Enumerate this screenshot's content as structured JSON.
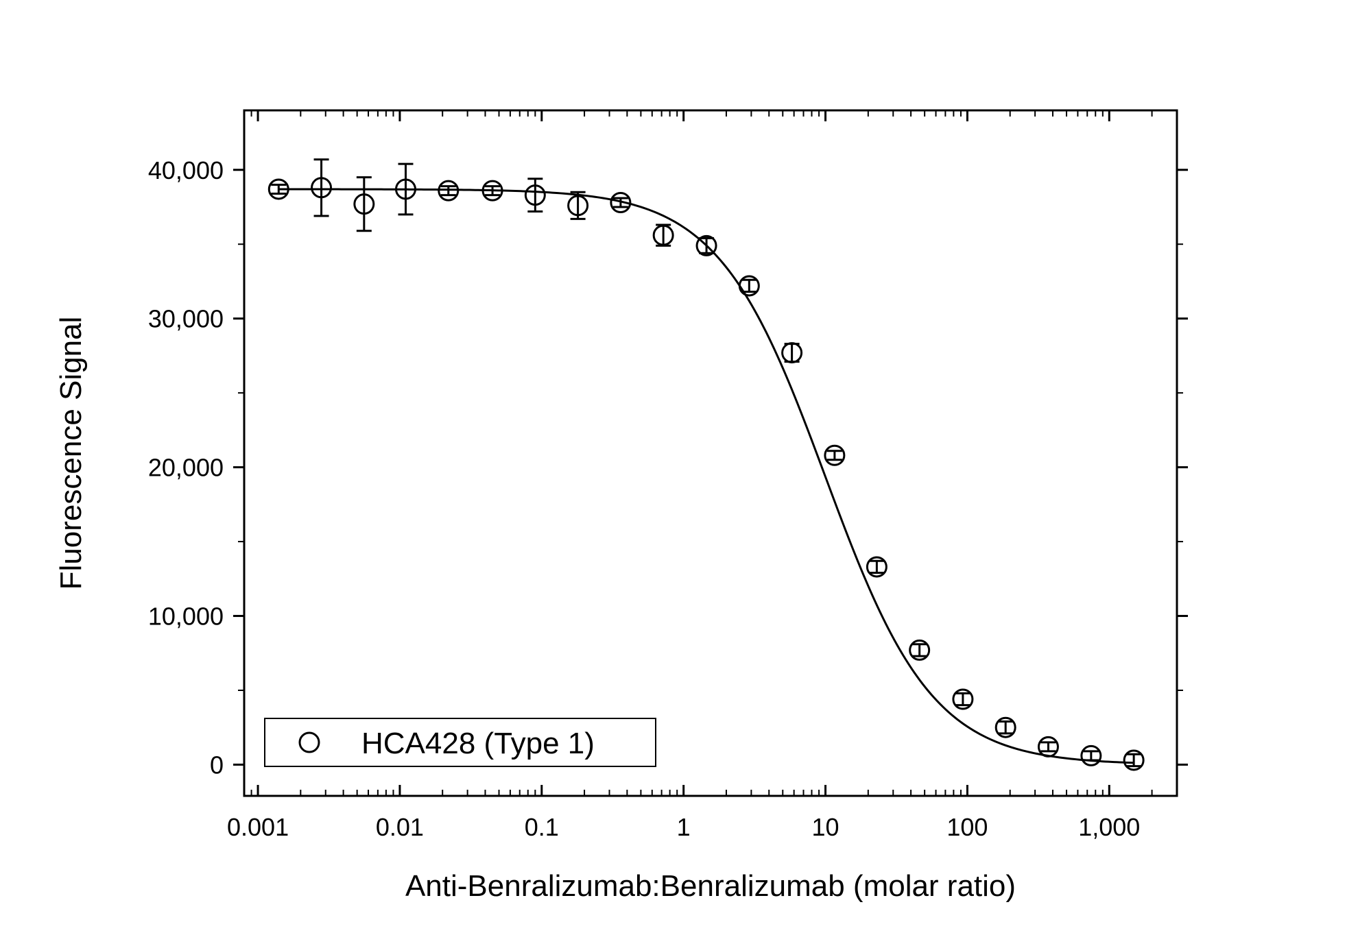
{
  "chart_data": {
    "type": "scatter",
    "title": "",
    "xlabel": "Anti-Benralizumab:Benralizumab (molar ratio)",
    "ylabel": "Fluorescence Signal",
    "x_scale": "log",
    "xlim": [
      0.0008,
      3000
    ],
    "ylim": [
      -2100,
      44000
    ],
    "x_ticks": [
      0.001,
      0.01,
      0.1,
      1,
      10,
      100,
      1000
    ],
    "x_tick_labels": [
      "0.001",
      "0.01",
      "0.1",
      "1",
      "10",
      "100",
      "1,000"
    ],
    "y_ticks": [
      0,
      10000,
      20000,
      30000,
      40000
    ],
    "y_tick_labels": [
      "0",
      "10,000",
      "20,000",
      "30,000",
      "40,000"
    ],
    "grid": false,
    "legend_position": "bottom-left",
    "marker": "open-circle",
    "color": "#000000",
    "series": [
      {
        "name": "HCA428 (Type 1)",
        "points": [
          {
            "x": 0.0014,
            "y": 38700,
            "err": 300
          },
          {
            "x": 0.0028,
            "y": 38800,
            "err": 1900
          },
          {
            "x": 0.0056,
            "y": 37700,
            "err": 1800
          },
          {
            "x": 0.011,
            "y": 38700,
            "err": 1700
          },
          {
            "x": 0.022,
            "y": 38600,
            "err": 300
          },
          {
            "x": 0.045,
            "y": 38600,
            "err": 300
          },
          {
            "x": 0.09,
            "y": 38300,
            "err": 1100
          },
          {
            "x": 0.18,
            "y": 37600,
            "err": 900
          },
          {
            "x": 0.36,
            "y": 37800,
            "err": 300
          },
          {
            "x": 0.72,
            "y": 35600,
            "err": 700
          },
          {
            "x": 1.45,
            "y": 34900,
            "err": 500
          },
          {
            "x": 2.9,
            "y": 32200,
            "err": 400
          },
          {
            "x": 5.8,
            "y": 27700,
            "err": 600
          },
          {
            "x": 11.6,
            "y": 20800,
            "err": 300
          },
          {
            "x": 23,
            "y": 13300,
            "err": 400
          },
          {
            "x": 46,
            "y": 7700,
            "err": 400
          },
          {
            "x": 93,
            "y": 4400,
            "err": 400
          },
          {
            "x": 186,
            "y": 2500,
            "err": 400
          },
          {
            "x": 372,
            "y": 1200,
            "err": 300
          },
          {
            "x": 745,
            "y": 600,
            "err": 300
          },
          {
            "x": 1490,
            "y": 300,
            "err": 400
          }
        ]
      }
    ],
    "fit": {
      "model": "4PL",
      "top": 38700,
      "bottom": 0,
      "ec50": 10,
      "hill": 1.15
    }
  }
}
